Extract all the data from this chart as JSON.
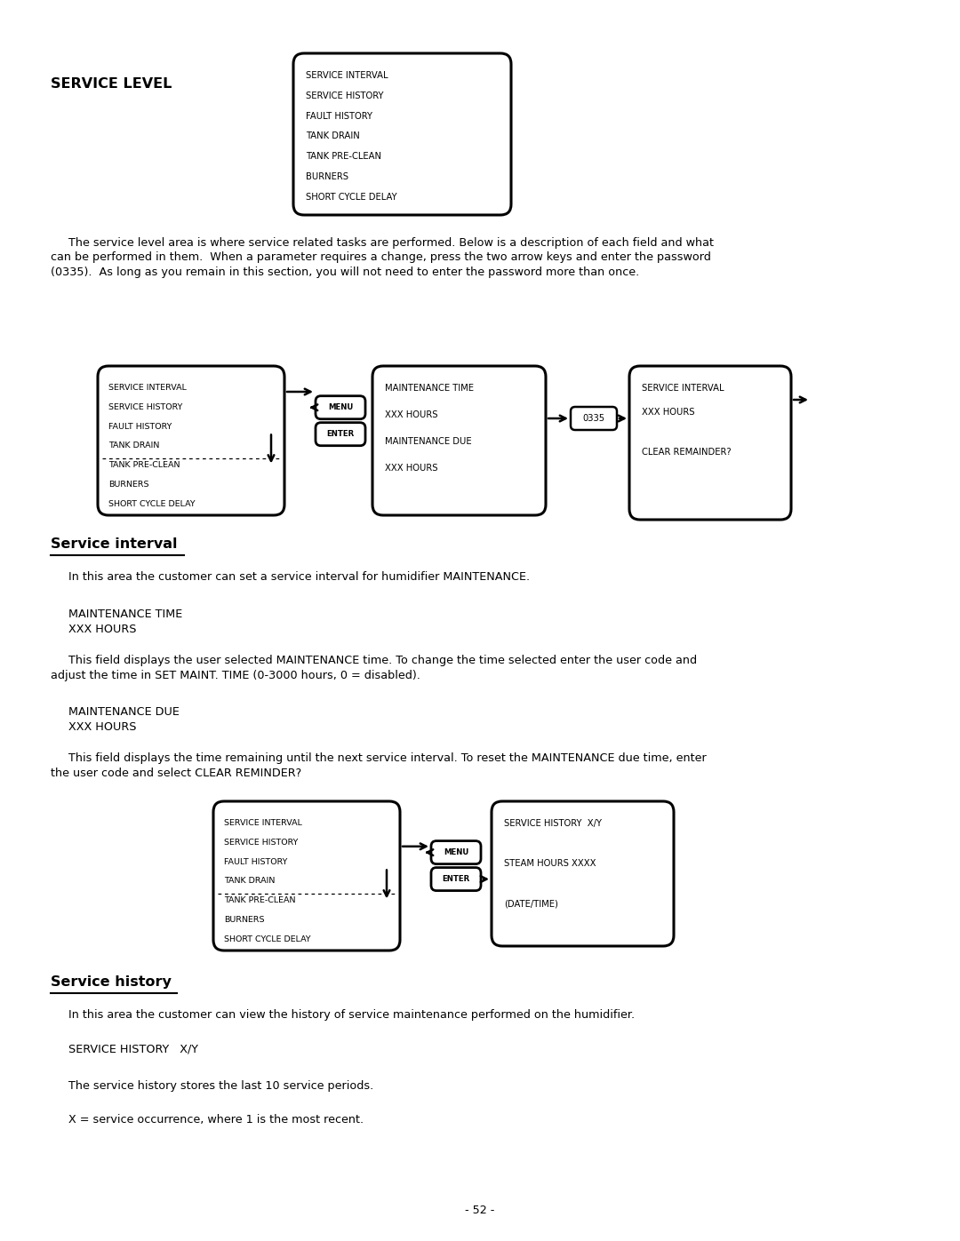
{
  "bg_color": "#ffffff",
  "page_width": 10.8,
  "page_height": 13.97,
  "section_title": "SERVICE LEVEL",
  "intro_para": "     The service level area is where service related tasks are performed. Below is a description of each field and what\ncan be performed in them.  When a parameter requires a change, press the two arrow keys and enter the password\n(0335).  As long as you remain in this section, you will not need to enter the password more than once.",
  "menu_items": [
    "SERVICE INTERVAL",
    "SERVICE HISTORY",
    "FAULT HISTORY",
    "TANK DRAIN",
    "TANK PRE-CLEAN",
    "BURNERS",
    "SHORT CYCLE DELAY"
  ],
  "sub1_title": "Service interval",
  "sub1_para1": "     In this area the customer can set a service interval for humidifier MAINTENANCE.",
  "sub1_block1_label": "     MAINTENANCE TIME\n     XXX HOURS",
  "sub1_field_desc1": "     This field displays the user selected MAINTENANCE time. To change the time selected enter the user code and\nadjust the time in SET MAINT. TIME (0-3000 hours, 0 = disabled).",
  "sub1_block2_label": "     MAINTENANCE DUE\n     XXX HOURS",
  "sub1_field_desc2": "     This field displays the time remaining until the next service interval. To reset the MAINTENANCE due time, enter\nthe user code and select CLEAR REMINDER?",
  "sub2_title": "Service history",
  "sub2_para1": "     In this area the customer can view the history of service maintenance performed on the humidifier.",
  "sub2_block1_label": "     SERVICE HISTORY   X/Y",
  "sub2_field_desc1": "     The service history stores the last 10 service periods.",
  "sub2_field_desc2": "     X = service occurrence, where 1 is the most recent.",
  "page_number": "- 52 -"
}
